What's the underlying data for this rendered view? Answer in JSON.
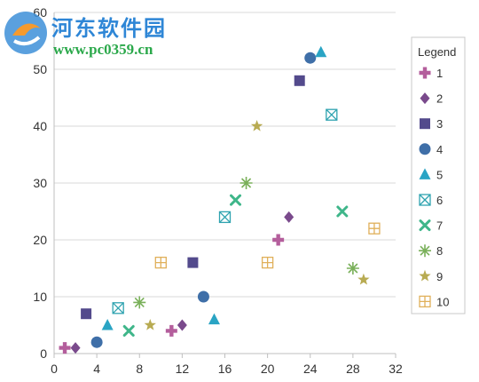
{
  "watermark": {
    "title": "河东软件园",
    "url": "www.pc0359.cn"
  },
  "chart_data": {
    "type": "scatter",
    "title": "",
    "xlabel": "",
    "ylabel": "",
    "xlim": [
      0,
      32
    ],
    "ylim": [
      0,
      60
    ],
    "x_ticks": [
      "0",
      "4",
      "8",
      "12",
      "16",
      "20",
      "24",
      "28",
      "32"
    ],
    "y_ticks": [
      "0",
      "10",
      "20",
      "30",
      "40",
      "50",
      "60"
    ],
    "grid": "horizontal",
    "legend": {
      "title": "Legend",
      "placement": "right"
    },
    "series": [
      {
        "name": "1",
        "marker": "plus",
        "color": "#b45e9c",
        "points": [
          [
            1,
            1
          ],
          [
            11,
            4
          ],
          [
            21,
            20
          ]
        ]
      },
      {
        "name": "2",
        "marker": "diamond",
        "color": "#7a4a8c",
        "points": [
          [
            2,
            1
          ],
          [
            12,
            5
          ],
          [
            22,
            24
          ]
        ]
      },
      {
        "name": "3",
        "marker": "square",
        "color": "#534a8c",
        "points": [
          [
            3,
            7
          ],
          [
            13,
            16
          ],
          [
            23,
            48
          ]
        ]
      },
      {
        "name": "4",
        "marker": "circle",
        "color": "#3f6fa8",
        "points": [
          [
            4,
            2
          ],
          [
            14,
            10
          ],
          [
            24,
            52
          ]
        ]
      },
      {
        "name": "5",
        "marker": "triangle",
        "color": "#2aa4c4",
        "points": [
          [
            5,
            5
          ],
          [
            15,
            6
          ],
          [
            25,
            53
          ]
        ]
      },
      {
        "name": "6",
        "marker": "boxx",
        "color": "#2fa3b0",
        "points": [
          [
            6,
            8
          ],
          [
            16,
            24
          ],
          [
            26,
            42
          ]
        ]
      },
      {
        "name": "7",
        "marker": "x",
        "color": "#3fb68a",
        "points": [
          [
            7,
            4
          ],
          [
            17,
            27
          ],
          [
            27,
            25
          ]
        ]
      },
      {
        "name": "8",
        "marker": "asterisk",
        "color": "#7ab05a",
        "points": [
          [
            8,
            9
          ],
          [
            18,
            30
          ],
          [
            28,
            15
          ]
        ]
      },
      {
        "name": "9",
        "marker": "star",
        "color": "#b8ab52",
        "points": [
          [
            9,
            5
          ],
          [
            19,
            40
          ],
          [
            29,
            13
          ]
        ]
      },
      {
        "name": "10",
        "marker": "boxplus",
        "color": "#e0b05a",
        "points": [
          [
            10,
            16
          ],
          [
            20,
            16
          ],
          [
            30,
            22
          ]
        ]
      }
    ]
  }
}
